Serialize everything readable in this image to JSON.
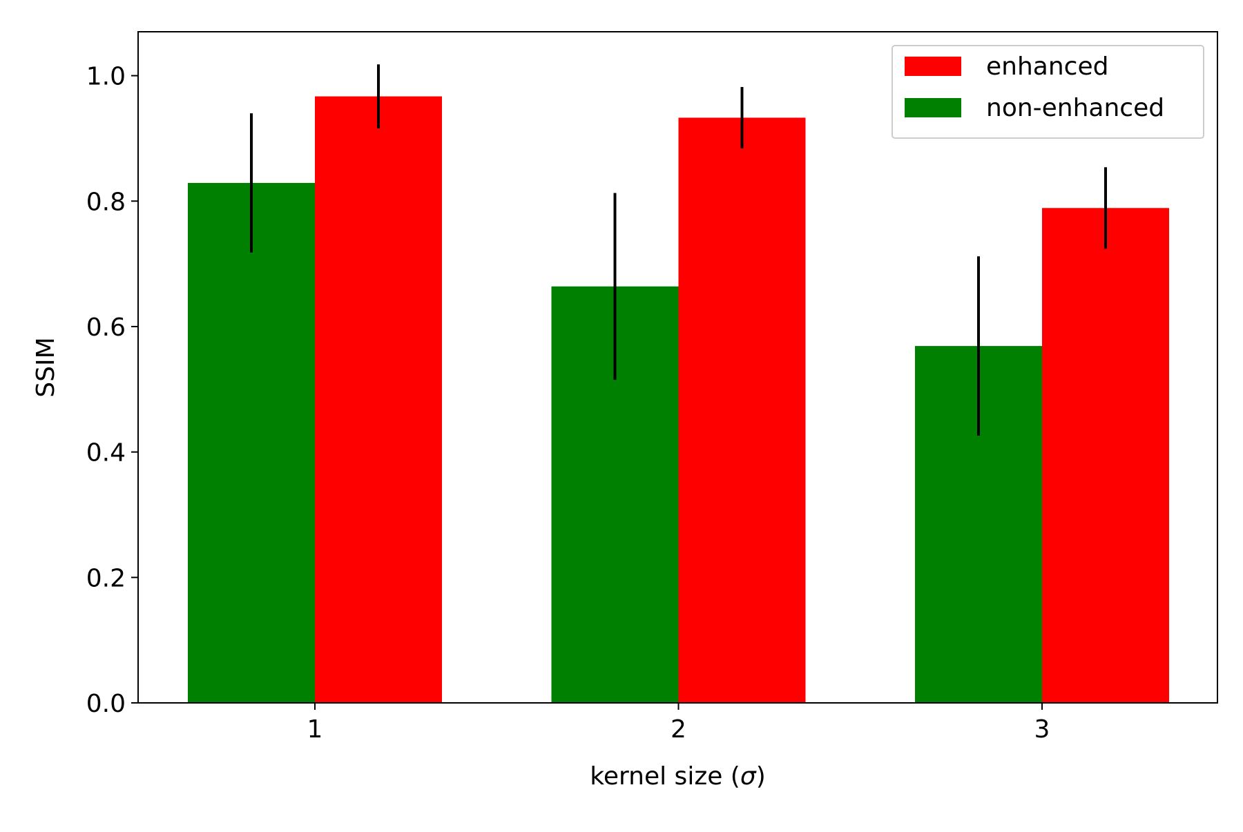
{
  "chart_data": {
    "type": "bar",
    "title": "",
    "xlabel_prefix": "kernel size (",
    "xlabel_symbol": "σ",
    "xlabel_suffix": ")",
    "ylabel": "SSIM",
    "categories": [
      "1",
      "2",
      "3"
    ],
    "ylim": [
      0,
      1.07
    ],
    "yticks": [
      "0.0",
      "0.2",
      "0.4",
      "0.6",
      "0.8",
      "1.0"
    ],
    "grid": false,
    "legend_position": "top-right",
    "series": [
      {
        "name": "non-enhanced",
        "color": "#008000",
        "values": [
          0.829,
          0.664,
          0.569
        ],
        "errors": [
          0.111,
          0.149,
          0.143
        ]
      },
      {
        "name": "enhanced",
        "color": "#ff0000",
        "values": [
          0.967,
          0.933,
          0.789
        ],
        "errors": [
          0.051,
          0.049,
          0.065
        ]
      }
    ],
    "legend_order": [
      1,
      0
    ]
  }
}
